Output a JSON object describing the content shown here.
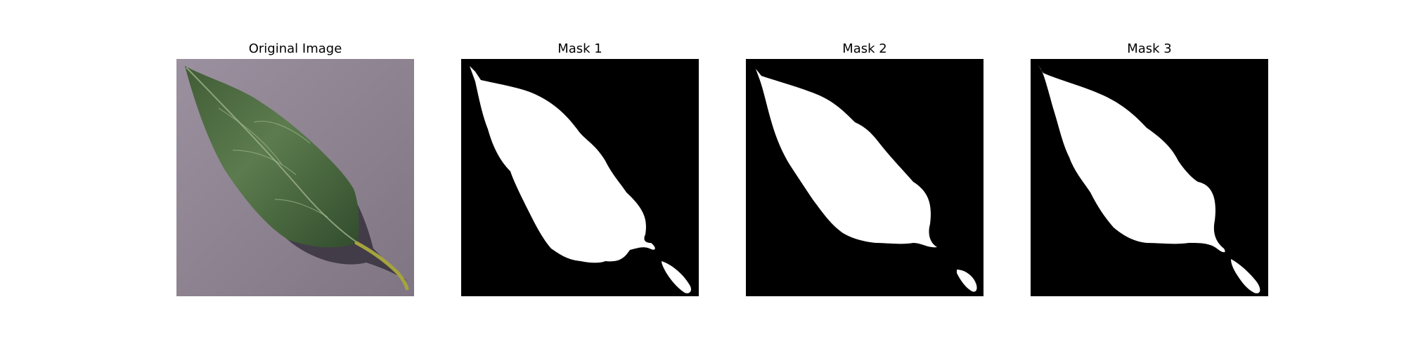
{
  "figure": {
    "panels": [
      {
        "title": "Original Image",
        "kind": "photo",
        "subject": "leaf-icon"
      },
      {
        "title": "Mask 1",
        "kind": "mask",
        "mask_color": "#ffffff",
        "background_color": "#000000"
      },
      {
        "title": "Mask 2",
        "kind": "mask",
        "mask_color": "#ffffff",
        "background_color": "#000000"
      },
      {
        "title": "Mask 3",
        "kind": "mask",
        "mask_color": "#ffffff",
        "background_color": "#000000"
      }
    ],
    "colors": {
      "photo_background": "#8a7f8c",
      "leaf_dark": "#2f4a2a",
      "leaf_mid": "#4d6a42",
      "leaf_light": "#7f9a6a",
      "shadow": "#2a2430",
      "stem": "#9a9a3a"
    }
  }
}
